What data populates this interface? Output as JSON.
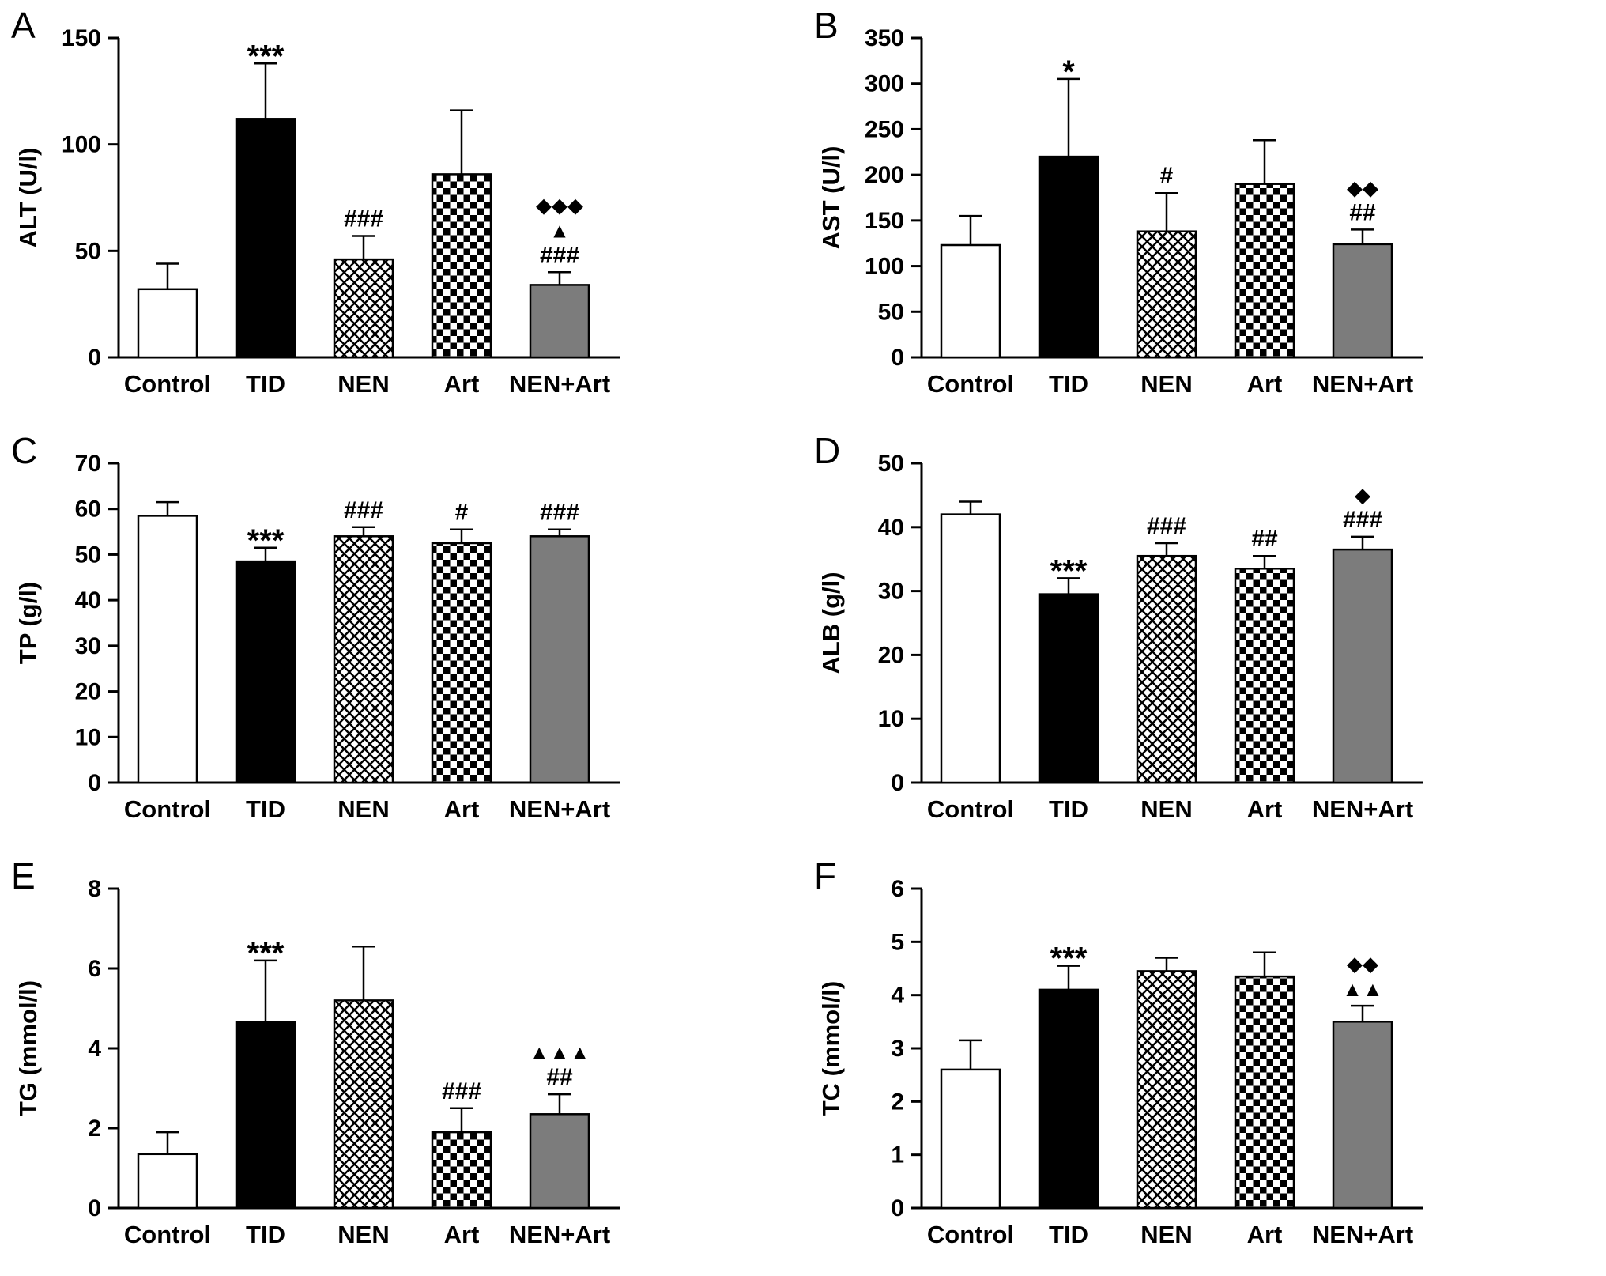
{
  "figure": {
    "panels": [
      "A",
      "B",
      "C",
      "D",
      "E",
      "F"
    ],
    "groups": [
      "Control",
      "TID",
      "NEN",
      "Art",
      "NEN+Art"
    ]
  },
  "colors": {
    "axis": "#000000",
    "bar_stroke": "#000000",
    "control_fill": "#ffffff",
    "tid_fill": "#000000",
    "nenart_fill": "#7c7c7c",
    "background": "#ffffff"
  },
  "chart_data": [
    {
      "type": "bar",
      "panel": "A",
      "ylabel": "ALT (U/l)",
      "xlabel": "",
      "ylim": [
        0,
        150
      ],
      "yticks": [
        0,
        50,
        100,
        150
      ],
      "categories": [
        "Control",
        "TID",
        "NEN",
        "Art",
        "NEN+Art"
      ],
      "styles": [
        "white",
        "black",
        "crosshatch",
        "checker",
        "gray"
      ],
      "values": [
        32,
        112,
        46,
        86,
        34
      ],
      "errors": [
        12,
        26,
        11,
        30,
        6
      ],
      "annotations": [
        [],
        [
          "***"
        ],
        [
          "###"
        ],
        [],
        [
          "◆◆◆",
          "▲",
          "###"
        ]
      ]
    },
    {
      "type": "bar",
      "panel": "B",
      "ylabel": "AST (U/l)",
      "xlabel": "",
      "ylim": [
        0,
        350
      ],
      "yticks": [
        0,
        50,
        100,
        150,
        200,
        250,
        300,
        350
      ],
      "categories": [
        "Control",
        "TID",
        "NEN",
        "Art",
        "NEN+Art"
      ],
      "styles": [
        "white",
        "black",
        "crosshatch",
        "checker",
        "gray"
      ],
      "values": [
        123,
        220,
        138,
        190,
        124
      ],
      "errors": [
        32,
        85,
        42,
        48,
        16
      ],
      "annotations": [
        [],
        [
          "*"
        ],
        [
          "#"
        ],
        [],
        [
          "◆◆",
          "##"
        ]
      ]
    },
    {
      "type": "bar",
      "panel": "C",
      "ylabel": "TP (g/l)",
      "xlabel": "",
      "ylim": [
        0,
        70
      ],
      "yticks": [
        0,
        10,
        20,
        30,
        40,
        50,
        60,
        70
      ],
      "categories": [
        "Control",
        "TID",
        "NEN",
        "Art",
        "NEN+Art"
      ],
      "styles": [
        "white",
        "black",
        "crosshatch",
        "checker",
        "gray"
      ],
      "values": [
        58.5,
        48.5,
        54,
        52.5,
        54
      ],
      "errors": [
        3,
        3,
        2,
        3,
        1.5
      ],
      "annotations": [
        [],
        [
          "***"
        ],
        [
          "###"
        ],
        [
          "#"
        ],
        [
          "###"
        ]
      ]
    },
    {
      "type": "bar",
      "panel": "D",
      "ylabel": "ALB (g/l)",
      "xlabel": "",
      "ylim": [
        0,
        50
      ],
      "yticks": [
        0,
        10,
        20,
        30,
        40,
        50
      ],
      "categories": [
        "Control",
        "TID",
        "NEN",
        "Art",
        "NEN+Art"
      ],
      "styles": [
        "white",
        "black",
        "crosshatch",
        "checker",
        "gray"
      ],
      "values": [
        42,
        29.5,
        35.5,
        33.5,
        36.5
      ],
      "errors": [
        2,
        2.5,
        2,
        2,
        2
      ],
      "annotations": [
        [],
        [
          "***"
        ],
        [
          "###"
        ],
        [
          "##"
        ],
        [
          "◆",
          "###"
        ]
      ]
    },
    {
      "type": "bar",
      "panel": "E",
      "ylabel": "TG (mmol/l)",
      "xlabel": "",
      "ylim": [
        0,
        8
      ],
      "yticks": [
        0,
        2,
        4,
        6,
        8
      ],
      "categories": [
        "Control",
        "TID",
        "NEN",
        "Art",
        "NEN+Art"
      ],
      "styles": [
        "white",
        "black",
        "crosshatch",
        "checker",
        "gray"
      ],
      "values": [
        1.35,
        4.65,
        5.2,
        1.9,
        2.35
      ],
      "errors": [
        0.55,
        1.55,
        1.35,
        0.6,
        0.5
      ],
      "annotations": [
        [],
        [
          "***"
        ],
        [],
        [
          "###"
        ],
        [
          "▲▲▲",
          "##"
        ]
      ]
    },
    {
      "type": "bar",
      "panel": "F",
      "ylabel": "TC (mmol/l)",
      "xlabel": "",
      "ylim": [
        0,
        6
      ],
      "yticks": [
        0,
        1,
        2,
        3,
        4,
        5,
        6
      ],
      "categories": [
        "Control",
        "TID",
        "NEN",
        "Art",
        "NEN+Art"
      ],
      "styles": [
        "white",
        "black",
        "crosshatch",
        "checker",
        "gray"
      ],
      "values": [
        2.6,
        4.1,
        4.45,
        4.35,
        3.5
      ],
      "errors": [
        0.55,
        0.45,
        0.25,
        0.45,
        0.3
      ],
      "annotations": [
        [],
        [
          "***"
        ],
        [],
        [],
        [
          "◆◆",
          "▲▲"
        ]
      ]
    }
  ]
}
